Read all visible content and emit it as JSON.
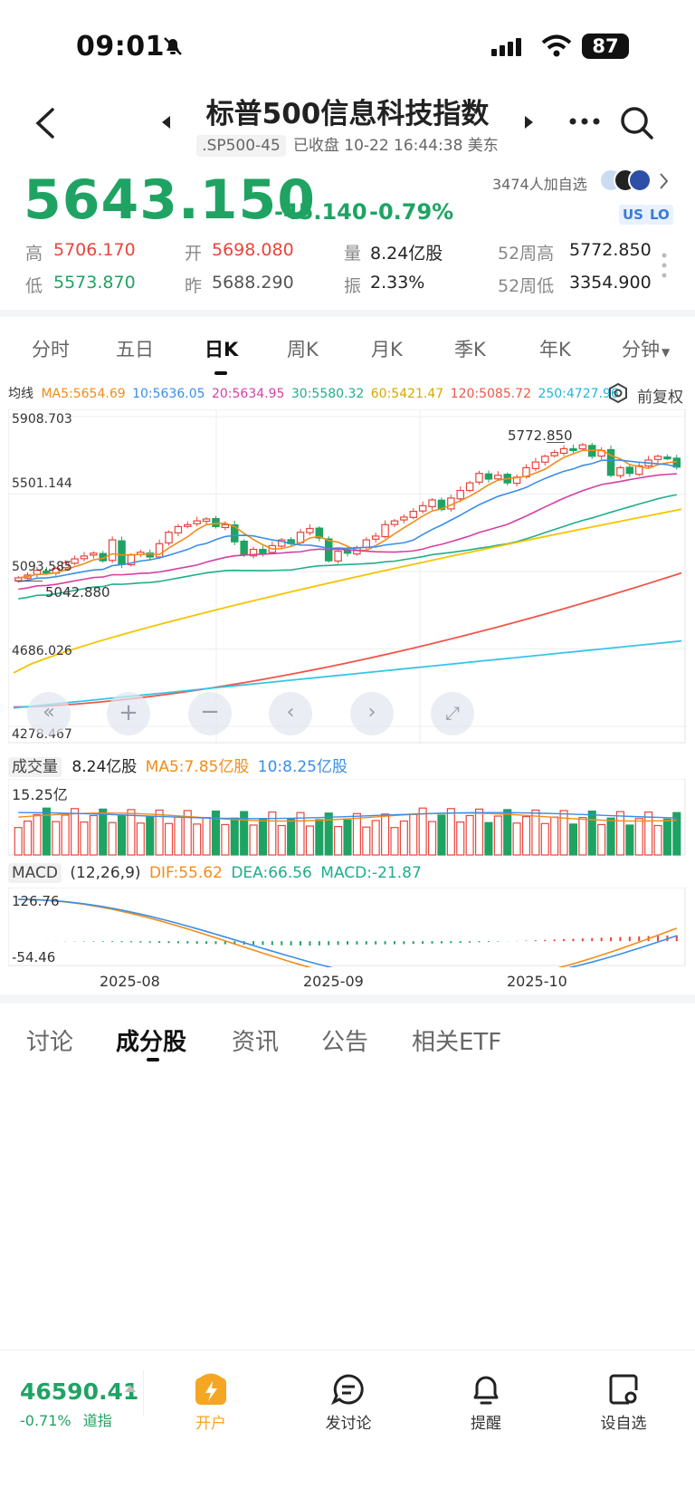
{
  "status": {
    "time": "09:01",
    "battery": "87"
  },
  "header": {
    "title": "标普500信息科技指数",
    "code": ".SP500-45",
    "status_text": "已收盘 10-22 16:44:38 美东"
  },
  "quote": {
    "price": "5643.150",
    "change": "-45.140",
    "change_pct": "-0.79%",
    "followers": "3474人加自选",
    "tags": [
      "US",
      "LO"
    ],
    "stats": [
      {
        "label": "高",
        "value": "5706.170",
        "color": "red"
      },
      {
        "label": "开",
        "value": "5698.080",
        "color": "red"
      },
      {
        "label": "量",
        "value": "8.24亿股",
        "color": "dark"
      },
      {
        "label": "52周高",
        "value": "5772.850",
        "color": "dark"
      },
      {
        "label": "低",
        "value": "5573.870",
        "color": "green"
      },
      {
        "label": "昨",
        "value": "5688.290",
        "color": "dark"
      },
      {
        "label": "振",
        "value": "2.33%",
        "color": "dark"
      },
      {
        "label": "52周低",
        "value": "3354.900",
        "color": "dark"
      }
    ]
  },
  "tabs": [
    "分时",
    "五日",
    "日K",
    "周K",
    "月K",
    "季K",
    "年K",
    "分钟"
  ],
  "active_tab": "日K",
  "ma_legend": {
    "label": "均线",
    "items": [
      {
        "text": "MA5:5654.69",
        "color": "#f28c1a"
      },
      {
        "text": "10:5636.05",
        "color": "#3a8ee6"
      },
      {
        "text": "20:5634.95",
        "color": "#d63fa3"
      },
      {
        "text": "30:5580.32",
        "color": "#1fae8c"
      },
      {
        "text": "60:5421.47",
        "color": "#f5c400"
      },
      {
        "text": "120:5085.72",
        "color": "#f0564a"
      },
      {
        "text": "250:4727.96",
        "color": "#35c6e8"
      }
    ],
    "adjust": "前复权"
  },
  "chart_axis": {
    "y_labels": [
      "5908.703",
      "5501.144",
      "5093.585",
      "4686.026",
      "4278.467"
    ],
    "high_marker": "5772.850",
    "low_marker": "5042.880",
    "x_labels": [
      "2025-08",
      "2025-09",
      "2025-10"
    ]
  },
  "volume": {
    "label": "成交量",
    "value": "8.24亿股",
    "ma5": "MA5:7.85亿股",
    "ma10": "10:8.25亿股",
    "max_label": "15.25亿"
  },
  "macd": {
    "label": "MACD",
    "params": "(12,26,9)",
    "dif": "DIF:55.62",
    "dea": "DEA:66.56",
    "macd": "MACD:-21.87",
    "top_label": "126.76",
    "bottom_label": "-54.46"
  },
  "bottom_tabs": [
    "讨论",
    "成分股",
    "资讯",
    "公告",
    "相关ETF"
  ],
  "bottom_active": "成分股",
  "footer": {
    "index_value": "46590.41",
    "index_change": "-0.71%",
    "index_name": "道指",
    "actions": [
      "开户",
      "发讨论",
      "提醒",
      "设自选"
    ]
  },
  "chart_data": {
    "type": "candlestick",
    "x_range": [
      "2025-07-21",
      "2025-10-22"
    ],
    "ylim": [
      4278.467,
      5908.703
    ],
    "y_ticks": [
      5908.703,
      5501.144,
      5093.585,
      4686.026,
      4278.467
    ],
    "closes": [
      5060,
      5075,
      5100,
      5085,
      5110,
      5140,
      5160,
      5175,
      5190,
      5150,
      5260,
      5130,
      5180,
      5195,
      5170,
      5240,
      5300,
      5330,
      5340,
      5360,
      5370,
      5330,
      5340,
      5250,
      5180,
      5210,
      5190,
      5230,
      5260,
      5240,
      5300,
      5320,
      5270,
      5150,
      5200,
      5190,
      5220,
      5260,
      5280,
      5340,
      5360,
      5380,
      5410,
      5440,
      5470,
      5420,
      5480,
      5520,
      5560,
      5610,
      5580,
      5600,
      5560,
      5590,
      5640,
      5670,
      5700,
      5720,
      5740,
      5735,
      5760,
      5700,
      5730,
      5600,
      5640,
      5610,
      5650,
      5680,
      5700,
      5690,
      5643
    ],
    "ma_series": [
      {
        "name": "MA5",
        "end": 5654.69
      },
      {
        "name": "10",
        "end": 5636.05
      },
      {
        "name": "20",
        "end": 5634.95
      },
      {
        "name": "30",
        "end": 5580.32
      },
      {
        "name": "60",
        "end": 5421.47
      },
      {
        "name": "120",
        "end": 5085.72
      },
      {
        "name": "250",
        "end": 4727.96
      }
    ],
    "volume_max": 15.25,
    "macd_range": [
      -54.46,
      126.76
    ]
  }
}
